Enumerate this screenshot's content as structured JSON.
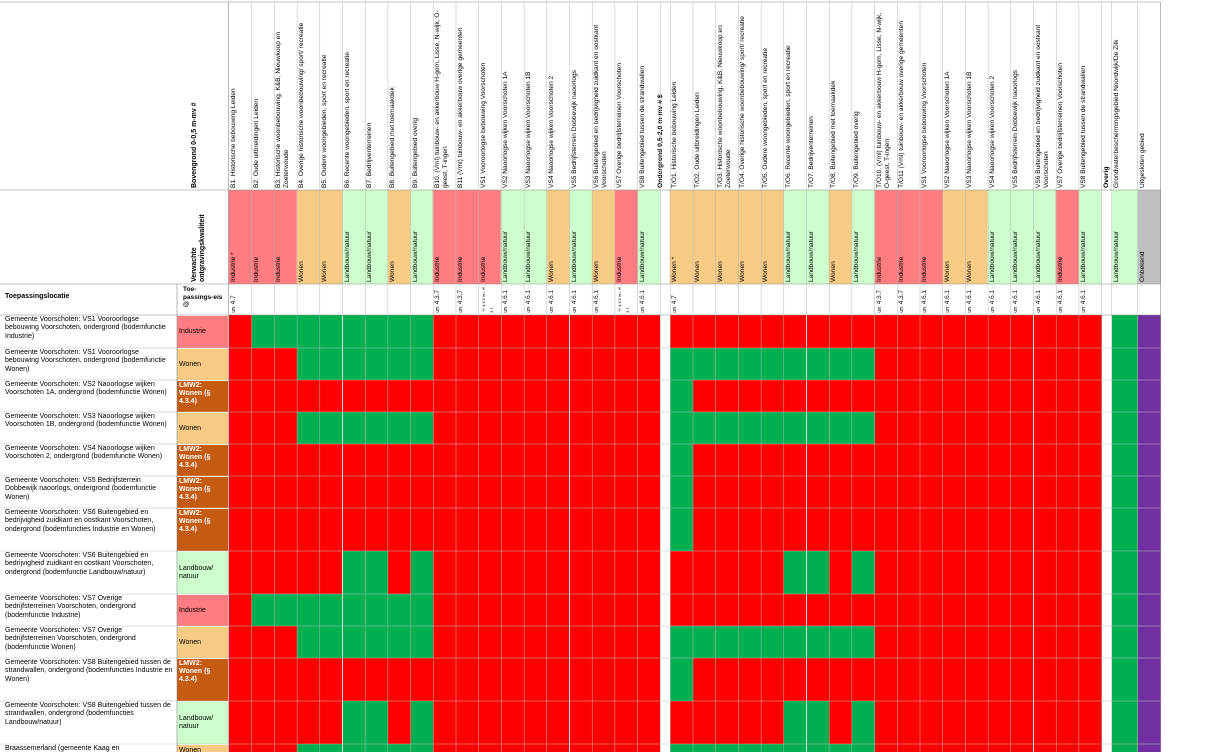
{
  "headers": {
    "bovengrond": "Bovengrond 0-0,5 m-mv #",
    "kwaliteit": "Verwachte ontgravingskwaliteit",
    "toepassingslocatie": "Toepassingslocatie",
    "toepassingseis": "Toe-passings-eis @"
  },
  "columns": [
    {
      "label": "B1. Historische bebouwing Leiden",
      "quality": "Industrie *",
      "fill": "red",
      "req": "§ 4.7"
    },
    {
      "label": "B2. Oude uitbreidingen Leiden",
      "quality": "Industrie",
      "fill": "red",
      "req": ""
    },
    {
      "label": "B3. Historische woonbebouwing, K&B, Nieuwkoop en Zoeterwoude",
      "quality": "Industrie",
      "fill": "red",
      "req": ""
    },
    {
      "label": "B4. Overige historische woonbebouwing/ sport/ recreatie",
      "quality": "Wonen",
      "fill": "orange",
      "req": ""
    },
    {
      "label": "B5. Oudere woongebieden, sport en recreatie",
      "quality": "Wonen",
      "fill": "orange",
      "req": ""
    },
    {
      "label": "B6. Recente woongebieden, sport en recreatie",
      "quality": "Landbouw/natuur",
      "fill": "green",
      "req": ""
    },
    {
      "label": "B7. Bedrijventerreinen",
      "quality": "Landbouw/natuur",
      "fill": "green",
      "req": ""
    },
    {
      "label": "B8. Buitengebied met toemaakdek",
      "quality": "Wonen",
      "fill": "orange",
      "req": ""
    },
    {
      "label": "B9. Buitengebied overig",
      "quality": "Landbouw/natuur",
      "fill": "green",
      "req": ""
    },
    {
      "label": "B10. (Vml) tuinbouw- en akkerbouw H-gom, Lisse, N-wijk, O-geest, T-ingen",
      "quality": "Industrie",
      "fill": "red",
      "req": "§ 4.3.7"
    },
    {
      "label": "B11 (Vml) tuinbouw- en akkerbouw overige gemeenten",
      "quality": "Industrie",
      "fill": "red",
      "req": "§ 4.3.7"
    },
    {
      "label": "VS1 Vooroorlogse bebouwing Voorschoten",
      "quality": "Industrie",
      "fill": "red",
      "req": "§ 4.6.1 en § 4.7"
    },
    {
      "label": "VS2 Naoorlogse wijken Voorschoten 1A",
      "quality": "Landbouw/natuur",
      "fill": "green",
      "req": "§ 4.6.1"
    },
    {
      "label": "VS3 Naoorlogse wijken Voorschoten 1B",
      "quality": "Landbouw/natuur",
      "fill": "green",
      "req": "§ 4.6.1"
    },
    {
      "label": "VS4 Naoorlogse wijken Voorschoten 2",
      "quality": "Wonen",
      "fill": "orange",
      "req": "§ 4.6.1"
    },
    {
      "label": "VS5 Bedrijfsterrein Dobbewijk naoorlogs",
      "quality": "Landbouw/natuur",
      "fill": "green",
      "req": "§ 4.6.1"
    },
    {
      "label": "VS6 Buitengebied en bedrijvigheid zuidkant en oostkant Voorschoten",
      "quality": "Wonen",
      "fill": "orange",
      "req": "§ 4.6.1"
    },
    {
      "label": "VS7 Overige bedrijfsterreinen Voorschoten",
      "quality": "Industrie",
      "fill": "red",
      "req": "§ 4.6.1 en § 4.7"
    },
    {
      "label": "VS8 Buitengebied tussen de strandwallen",
      "quality": "Landbouw/natuur",
      "fill": "green",
      "req": "§ 4.6.1"
    },
    {
      "label": "Ondergrond 0,5-2,0 m-mv # $",
      "quality": "",
      "fill": "white",
      "req": ""
    },
    {
      "label": "T/O1. Historische bebouwing Leiden",
      "quality": "Wonen *",
      "fill": "orange",
      "req": "§ 4.7"
    },
    {
      "label": "T/O2. Oude uitbreidingen Leiden",
      "quality": "Wonen",
      "fill": "orange",
      "req": ""
    },
    {
      "label": "T/O3. Historische woonbebouwing, K&B, Nieuwkoop en Zoeterwoude",
      "quality": "Wonen",
      "fill": "orange",
      "req": ""
    },
    {
      "label": "T/O4. Overige historische woonbebouwing/ sport/ recreatie",
      "quality": "Wonen",
      "fill": "orange",
      "req": ""
    },
    {
      "label": "T/O5. Oudere woongebieden, sport en recreatie",
      "quality": "Wonen",
      "fill": "orange",
      "req": ""
    },
    {
      "label": "T/O6. Recente woongebieden, sport en recreatie",
      "quality": "Landbouw/natuur",
      "fill": "green",
      "req": ""
    },
    {
      "label": "T/O7. Bedrijventerreinen",
      "quality": "Landbouw/natuur",
      "fill": "green",
      "req": ""
    },
    {
      "label": "T/O8. Buitengebied met toemaakdek",
      "quality": "Wonen",
      "fill": "orange",
      "req": ""
    },
    {
      "label": "T/O9. Buitengebied overig",
      "quality": "Landbouw/natuur",
      "fill": "green",
      "req": ""
    },
    {
      "label": "T/O10. (Vml) tuinbouw- en akkerbouw H-gom, Lisse, N-wijk, O-geest, T-ingen",
      "quality": "Industrie",
      "fill": "red",
      "req": "§ 4.3.7"
    },
    {
      "label": "T/O11 (Vml) tuinbouw- en akkerbouw overige gemeenten",
      "quality": "Industrie",
      "fill": "red",
      "req": "§ 4.3.7"
    },
    {
      "label": "VS1 Vooroorlogse bebouwing Voorschoten",
      "quality": "Industrie",
      "fill": "red",
      "req": "§ 4.6.1"
    },
    {
      "label": "VS2 Naoorlogse wijken Voorschoten 1A",
      "quality": "Wonen",
      "fill": "orange",
      "req": "§ 4.6.1"
    },
    {
      "label": "VS3 Naoorlogse wijken Voorschoten 1B",
      "quality": "Wonen",
      "fill": "orange",
      "req": "§ 4.6.1"
    },
    {
      "label": "VS4 Naoorlogse wijken Voorschoten 2",
      "quality": "Landbouw/natuur",
      "fill": "green",
      "req": "§ 4.6.1"
    },
    {
      "label": "VS5 Bedrijfsterrein Dobbewijk naoorlogs",
      "quality": "Landbouw/natuur",
      "fill": "green",
      "req": "§ 4.6.1"
    },
    {
      "label": "VS6 Buitengebied en bedrijvigheid zuidkant en oostkant Voorschoten",
      "quality": "Landbouw/natuur",
      "fill": "green",
      "req": "§ 4.6.1"
    },
    {
      "label": "VS7 Overige bedrijfsterreinen Voorschoten",
      "quality": "Industrie",
      "fill": "red",
      "req": "§ 4.6.1"
    },
    {
      "label": "VS8 Buitengebied tussen de strandwallen",
      "quality": "Landbouw/natuur",
      "fill": "green",
      "req": "§ 4.6.1"
    },
    {
      "label": "Overig",
      "quality": "",
      "fill": "white",
      "req": ""
    },
    {
      "label": "Grondwaterbeschermingsgebied Noordwijk/De Zilk",
      "quality": "Landbouw/natuur",
      "fill": "green",
      "req": ""
    },
    {
      "label": "Uitgesloten gebied",
      "quality": "Onbekend",
      "fill": "grey",
      "req": ""
    }
  ],
  "rows": [
    {
      "location": "Gemeente Voorschoten: VS1 Vooroorlogse bebouwing Voorschoten, ondergrond (bodemfunctie Industrie)",
      "class": "Industrie",
      "fill": "red",
      "cells": "RGGGGGGGGRRRRRRRRRRWRRRRRRRRRRRRRRRRRRRWGP"
    },
    {
      "location": "Gemeente Voorschoten: VS1 Vooroorlogse bebouwing Voorschoten, ondergrond (bodemfunctie Wonen)",
      "class": "Wonen",
      "fill": "orange",
      "cells": "RRRGGGGGGRRRRRRRRRRWGGGGGGGGGRRRRRRRRRRWGP"
    },
    {
      "location": "Gemeente Voorschoten: VS2 Naoorlogse wijken Voorschoten 1A, ondergrond (bodemfunctie Wonen)",
      "class": "LMW2: Wonen (§ 4.3.4)",
      "fill": "brown",
      "cells": "RRRRRRRRRRRRRRRRRRRWGRRRRRRRRRRRRRRRRRRWGP"
    },
    {
      "location": "Gemeente Voorschoten: VS3 Naoorlogse wijken Voorschoten 1B, ondergrond (bodemfunctie Wonen)",
      "class": "Wonen",
      "fill": "orange",
      "cells": "RRRGGGGGGRRRRRRRRRRWGGGGGGGGGRRRRRRRRRRWGP"
    },
    {
      "location": "Gemeente Voorschoten: VS4 Naoorlogse wijken Voorschoten 2, ondergrond (bodemfunctie Wonen)",
      "class": "LMW2: Wonen (§ 4.3.4)",
      "fill": "brown",
      "cells": "RRRRRRRRRRRRRRRRRRRWGRRRRRRRRRRRRRRRRRRWGP"
    },
    {
      "location": "Gemeente Voorschoten: VS5 Bedrijfsterrein Dobbewijk naoorlogs, ondergrond (bodemfunctie Wonen)",
      "class": "LMW2: Wonen (§ 4.3.4)",
      "fill": "brown",
      "cells": "RRRRRRRRRRRRRRRRRRRWGRRRRRRRRRRRRRRRRRRWGP"
    },
    {
      "location": "Gemeente Voorschoten: VS6 Buitengebied en bedrijvigheid zuidkant en oostkant Voorschoten, ondergrond (bodemfuncties Industrie en Wonen)",
      "class": "LMW2: Wonen (§ 4.3.4)",
      "fill": "brown",
      "cells": "RRRRRRRRRRRRRRRRRRRWGRRRRRRRRRRRRRRRRRRWGP"
    },
    {
      "location": "Gemeente Voorschoten: VS6 Buitengebied en bedrijvigheid zuidkant en oostkant Voorschoten, ondergrond (bodemfunctie Landbouw/natuur)",
      "class": "Landbouw/ natuur",
      "fill": "green",
      "cells": "RRRRRGGRGRRRRRRRRRRWRRRRRGGRGRRRRRRRRRRWGP"
    },
    {
      "location": "Gemeente Voorschoten: VS7 Overige bedrijfsterreinen Voorschoten, ondergrond (bodemfunctie Industrie)",
      "class": "Industrie",
      "fill": "red",
      "cells": "RGGGGGGGGRRRRRRRRRRWRRRRRRRRRRRRRRRRRRRWGP"
    },
    {
      "location": "Gemeente Voorschoten: VS7 Overige bedrijfsterreinen Voorschoten, ondergrond (bodemfunctie Wonen)",
      "class": "Wonen",
      "fill": "orange",
      "cells": "RRRGGGGGGRRRRRRRRRRWGGGGGGGGGRRRRRRRRRRWGP"
    },
    {
      "location": "Gemeente Voorschoten: VS8 Buitengebied tussen de strandwallen, ondergrond (bodemfuncties Industrie en Wonen)",
      "class": "LMW2: Wonen (§ 4.3.4)",
      "fill": "brown",
      "cells": "RRRRRRRRRRRRRRRRRRRWGRRRRRRRRRRRRRRRRRRWGP"
    },
    {
      "location": "Gemeente Voorschoten: VS8 Buitengebied tussen de strandwallen, ondergrond (bodemfuncties Landbouw/natuur)",
      "class": "Landbouw/ natuur",
      "fill": "green",
      "cells": "RRRRRGGRGRRRRRRRRRRWRRRRRGGRGRRRRRRRRRRWGP"
    },
    {
      "location": "Braassemerland (gemeente Kaag en",
      "class": "Wonen",
      "fill": "orange",
      "cells": "RRRGGGGGGRRRRRRRRRRWGGGGGGGGGRRRRRRRRRRWGP"
    }
  ],
  "colors": {
    "red": "#ff0000",
    "green": "#00b050",
    "purple": "#7030a0",
    "white": "#ffffff",
    "head_red": "#ff7c80",
    "head_orange": "#f8cb85",
    "head_green": "#ccffcc",
    "head_grey": "#bfbfbf",
    "brown": "#c55a11"
  }
}
